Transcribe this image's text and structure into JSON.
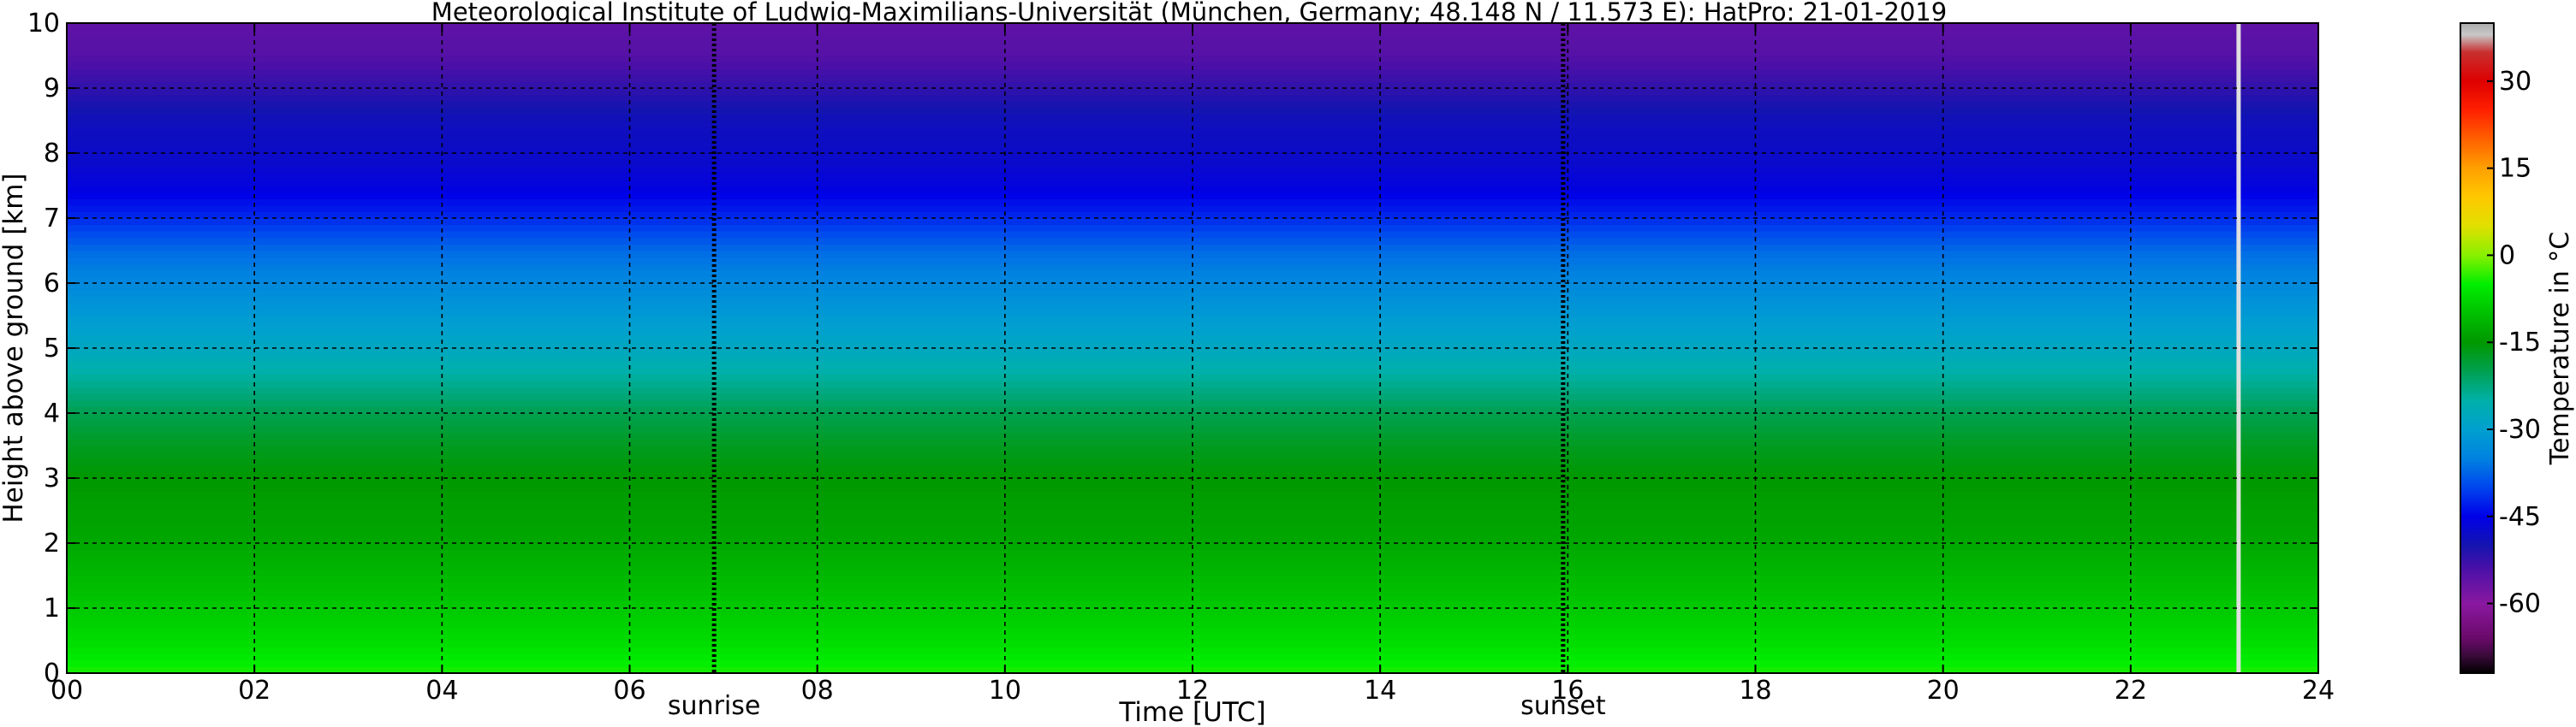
{
  "chart_data": {
    "type": "heatmap",
    "title": "Meteorological Institute of Ludwig-Maximilians-Universität (München, Germany; 48.148 N / 11.573 E):    HatPro: 21-01-2019",
    "xlabel": "Time [UTC]",
    "ylabel": "Height above ground [km]",
    "xlim": [
      0,
      24
    ],
    "ylim": [
      0,
      10
    ],
    "x_ticks": [
      "00",
      "02",
      "04",
      "06",
      "08",
      "10",
      "12",
      "14",
      "16",
      "18",
      "20",
      "22",
      "24"
    ],
    "y_ticks": [
      "0",
      "1",
      "2",
      "3",
      "4",
      "5",
      "6",
      "7",
      "8",
      "9",
      "10"
    ],
    "grid": true,
    "colorbar": {
      "label": "Temperature in °C",
      "range": [
        -72,
        40
      ],
      "ticks": [
        "-60",
        "-45",
        "-30",
        "-15",
        "0",
        "15",
        "30"
      ],
      "colors": [
        {
          "t": -72,
          "c": "#000000"
        },
        {
          "t": -69,
          "c": "#3a0a3a"
        },
        {
          "t": -66,
          "c": "#6a0a6a"
        },
        {
          "t": -60,
          "c": "#8a18a0"
        },
        {
          "t": -54,
          "c": "#4a10a8"
        },
        {
          "t": -50,
          "c": "#1414b0"
        },
        {
          "t": -45,
          "c": "#0000e8"
        },
        {
          "t": -40,
          "c": "#0046ee"
        },
        {
          "t": -35,
          "c": "#0082e0"
        },
        {
          "t": -30,
          "c": "#00a0d0"
        },
        {
          "t": -25,
          "c": "#00b0a8"
        },
        {
          "t": -20,
          "c": "#00a050"
        },
        {
          "t": -15,
          "c": "#009800"
        },
        {
          "t": -10,
          "c": "#00c000"
        },
        {
          "t": -5,
          "c": "#00ee00"
        },
        {
          "t": 0,
          "c": "#88f000"
        },
        {
          "t": 5,
          "c": "#e0e000"
        },
        {
          "t": 10,
          "c": "#ffc800"
        },
        {
          "t": 15,
          "c": "#ffa000"
        },
        {
          "t": 20,
          "c": "#ff6000"
        },
        {
          "t": 25,
          "c": "#ff2000"
        },
        {
          "t": 30,
          "c": "#dd0000"
        },
        {
          "t": 35,
          "c": "#c83030"
        },
        {
          "t": 38,
          "c": "#c8c8c8"
        },
        {
          "t": 40,
          "c": "#aaaaaa"
        }
      ]
    },
    "temperature_profile": {
      "heights_km": [
        0,
        0.5,
        1,
        1.5,
        2,
        2.5,
        3,
        3.5,
        4,
        4.5,
        5,
        5.5,
        6,
        6.5,
        7,
        7.5,
        8,
        8.5,
        9,
        9.5,
        10
      ],
      "temperature_c": [
        -4,
        -7,
        -9,
        -11,
        -13,
        -14,
        -15,
        -17,
        -20,
        -24,
        -28,
        -31,
        -34,
        -37,
        -42,
        -46,
        -48,
        -49,
        -52,
        -55,
        -56
      ]
    },
    "annotations": [
      {
        "label": "sunrise",
        "x": 6.9
      },
      {
        "label": "sunset",
        "x": 15.95
      }
    ],
    "data_gap": {
      "x": 23.15
    }
  }
}
